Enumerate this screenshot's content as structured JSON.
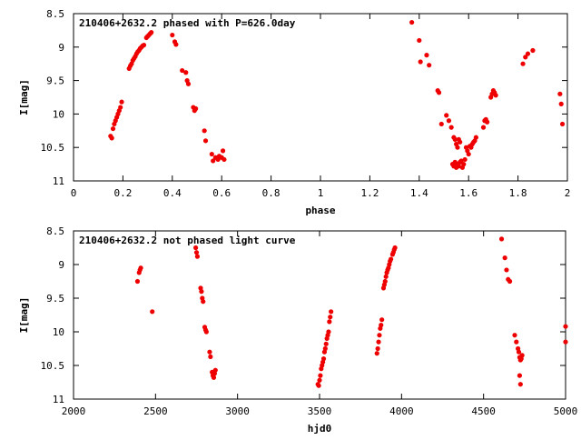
{
  "chart_data": [
    {
      "type": "scatter",
      "title": "210406+2632.2 phased with P=626.0day",
      "xlabel": "phase",
      "ylabel": "I[mag]",
      "xlim": [
        0,
        2
      ],
      "ylim": [
        11,
        8.5
      ],
      "y_inverted": true,
      "xticks": [
        0,
        0.2,
        0.4,
        0.6,
        0.8,
        1,
        1.2,
        1.4,
        1.6,
        1.8,
        2
      ],
      "xtick_labels": [
        "0",
        "0.2",
        "0.4",
        "0.6",
        "0.8",
        "1",
        "1.2",
        "1.4",
        "1.6",
        "1.8",
        "2"
      ],
      "yticks": [
        8.5,
        9,
        9.5,
        10,
        10.5,
        11
      ],
      "ytick_labels": [
        "8.5",
        "9",
        "9.5",
        "10",
        "10.5",
        "11"
      ],
      "grid": false,
      "marker_color": "#ee0000",
      "points": [
        [
          0.15,
          10.33
        ],
        [
          0.155,
          10.36
        ],
        [
          0.16,
          10.22
        ],
        [
          0.165,
          10.15
        ],
        [
          0.17,
          10.1
        ],
        [
          0.175,
          10.05
        ],
        [
          0.18,
          10.0
        ],
        [
          0.185,
          9.95
        ],
        [
          0.19,
          9.9
        ],
        [
          0.195,
          9.82
        ],
        [
          0.225,
          9.32
        ],
        [
          0.23,
          9.28
        ],
        [
          0.235,
          9.25
        ],
        [
          0.24,
          9.2
        ],
        [
          0.245,
          9.17
        ],
        [
          0.25,
          9.14
        ],
        [
          0.255,
          9.1
        ],
        [
          0.26,
          9.07
        ],
        [
          0.265,
          9.05
        ],
        [
          0.27,
          9.02
        ],
        [
          0.275,
          9.0
        ],
        [
          0.28,
          8.98
        ],
        [
          0.285,
          8.97
        ],
        [
          0.295,
          8.86
        ],
        [
          0.3,
          8.84
        ],
        [
          0.305,
          8.82
        ],
        [
          0.31,
          8.8
        ],
        [
          0.315,
          8.78
        ],
        [
          0.4,
          8.82
        ],
        [
          0.41,
          8.92
        ],
        [
          0.415,
          8.96
        ],
        [
          0.44,
          9.35
        ],
        [
          0.455,
          9.38
        ],
        [
          0.46,
          9.5
        ],
        [
          0.465,
          9.55
        ],
        [
          0.485,
          9.9
        ],
        [
          0.49,
          9.95
        ],
        [
          0.495,
          9.92
        ],
        [
          0.53,
          10.25
        ],
        [
          0.535,
          10.4
        ],
        [
          0.56,
          10.6
        ],
        [
          0.565,
          10.7
        ],
        [
          0.575,
          10.65
        ],
        [
          0.585,
          10.68
        ],
        [
          0.59,
          10.63
        ],
        [
          0.6,
          10.65
        ],
        [
          0.605,
          10.55
        ],
        [
          0.61,
          10.68
        ],
        [
          1.37,
          8.63
        ],
        [
          1.4,
          8.9
        ],
        [
          1.405,
          9.22
        ],
        [
          1.43,
          9.12
        ],
        [
          1.44,
          9.27
        ],
        [
          1.475,
          9.65
        ],
        [
          1.48,
          9.68
        ],
        [
          1.49,
          10.15
        ],
        [
          1.51,
          10.02
        ],
        [
          1.52,
          10.1
        ],
        [
          1.53,
          10.2
        ],
        [
          1.54,
          10.35
        ],
        [
          1.545,
          10.38
        ],
        [
          1.55,
          10.45
        ],
        [
          1.555,
          10.5
        ],
        [
          1.56,
          10.38
        ],
        [
          1.565,
          10.42
        ],
        [
          1.57,
          10.7
        ],
        [
          1.535,
          10.75
        ],
        [
          1.54,
          10.78
        ],
        [
          1.545,
          10.72
        ],
        [
          1.55,
          10.8
        ],
        [
          1.555,
          10.75
        ],
        [
          1.56,
          10.78
        ],
        [
          1.565,
          10.72
        ],
        [
          1.575,
          10.8
        ],
        [
          1.58,
          10.75
        ],
        [
          1.585,
          10.68
        ],
        [
          1.59,
          10.5
        ],
        [
          1.595,
          10.55
        ],
        [
          1.6,
          10.6
        ],
        [
          1.605,
          10.48
        ],
        [
          1.61,
          10.5
        ],
        [
          1.615,
          10.45
        ],
        [
          1.62,
          10.42
        ],
        [
          1.625,
          10.4
        ],
        [
          1.63,
          10.35
        ],
        [
          1.66,
          10.2
        ],
        [
          1.665,
          10.1
        ],
        [
          1.67,
          10.08
        ],
        [
          1.675,
          10.12
        ],
        [
          1.69,
          9.75
        ],
        [
          1.695,
          9.7
        ],
        [
          1.7,
          9.65
        ],
        [
          1.705,
          9.68
        ],
        [
          1.71,
          9.72
        ],
        [
          1.82,
          9.25
        ],
        [
          1.83,
          9.15
        ],
        [
          1.84,
          9.1
        ],
        [
          1.86,
          9.05
        ],
        [
          1.97,
          9.7
        ],
        [
          1.975,
          9.85
        ],
        [
          1.98,
          10.15
        ]
      ]
    },
    {
      "type": "scatter",
      "title": "210406+2632.2 not phased light curve",
      "xlabel": "hjd0",
      "ylabel": "I[mag]",
      "xlim": [
        2000,
        5000
      ],
      "ylim": [
        11,
        8.5
      ],
      "y_inverted": true,
      "xticks": [
        2000,
        2500,
        3000,
        3500,
        4000,
        4500,
        5000
      ],
      "xtick_labels": [
        "2000",
        "2500",
        "3000",
        "3500",
        "4000",
        "4500",
        "5000"
      ],
      "yticks": [
        8.5,
        9,
        9.5,
        10,
        10.5,
        11
      ],
      "ytick_labels": [
        "8.5",
        "9",
        "9.5",
        "10",
        "10.5",
        "11"
      ],
      "grid": false,
      "marker_color": "#ee0000",
      "points": [
        [
          2390,
          9.25
        ],
        [
          2400,
          9.12
        ],
        [
          2405,
          9.08
        ],
        [
          2410,
          9.05
        ],
        [
          2480,
          9.7
        ],
        [
          2745,
          8.75
        ],
        [
          2750,
          8.82
        ],
        [
          2755,
          8.88
        ],
        [
          2775,
          9.35
        ],
        [
          2780,
          9.4
        ],
        [
          2785,
          9.5
        ],
        [
          2790,
          9.55
        ],
        [
          2800,
          9.93
        ],
        [
          2805,
          9.97
        ],
        [
          2810,
          10.0
        ],
        [
          2830,
          10.3
        ],
        [
          2835,
          10.37
        ],
        [
          2845,
          10.6
        ],
        [
          2850,
          10.65
        ],
        [
          2855,
          10.68
        ],
        [
          2860,
          10.62
        ],
        [
          2865,
          10.57
        ],
        [
          3490,
          10.78
        ],
        [
          3495,
          10.8
        ],
        [
          3500,
          10.72
        ],
        [
          3505,
          10.65
        ],
        [
          3510,
          10.55
        ],
        [
          3515,
          10.5
        ],
        [
          3520,
          10.45
        ],
        [
          3525,
          10.4
        ],
        [
          3530,
          10.3
        ],
        [
          3535,
          10.25
        ],
        [
          3540,
          10.18
        ],
        [
          3545,
          10.1
        ],
        [
          3550,
          10.05
        ],
        [
          3555,
          10.0
        ],
        [
          3560,
          9.85
        ],
        [
          3565,
          9.78
        ],
        [
          3570,
          9.7
        ],
        [
          3850,
          10.32
        ],
        [
          3855,
          10.25
        ],
        [
          3860,
          10.15
        ],
        [
          3865,
          10.05
        ],
        [
          3870,
          9.95
        ],
        [
          3875,
          9.9
        ],
        [
          3880,
          9.82
        ],
        [
          3890,
          9.35
        ],
        [
          3895,
          9.3
        ],
        [
          3900,
          9.25
        ],
        [
          3905,
          9.18
        ],
        [
          3910,
          9.12
        ],
        [
          3915,
          9.08
        ],
        [
          3920,
          9.05
        ],
        [
          3925,
          9.0
        ],
        [
          3930,
          8.95
        ],
        [
          3935,
          8.92
        ],
        [
          3945,
          8.85
        ],
        [
          3950,
          8.82
        ],
        [
          3955,
          8.78
        ],
        [
          3960,
          8.75
        ],
        [
          4610,
          8.62
        ],
        [
          4630,
          8.9
        ],
        [
          4640,
          9.08
        ],
        [
          4650,
          9.22
        ],
        [
          4660,
          9.25
        ],
        [
          4690,
          10.05
        ],
        [
          4700,
          10.15
        ],
        [
          4710,
          10.25
        ],
        [
          4715,
          10.3
        ],
        [
          4720,
          10.38
        ],
        [
          4725,
          10.42
        ],
        [
          4730,
          10.4
        ],
        [
          4735,
          10.35
        ],
        [
          4720,
          10.65
        ],
        [
          4725,
          10.78
        ],
        [
          5000,
          9.92
        ],
        [
          5000,
          10.15
        ]
      ]
    }
  ]
}
